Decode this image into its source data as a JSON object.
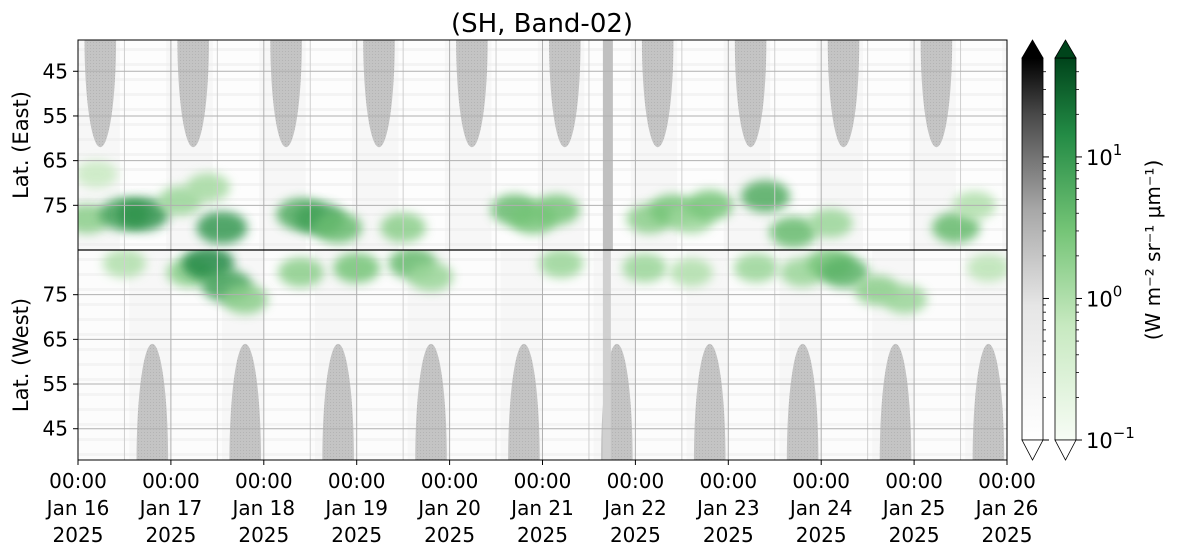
{
  "chart_data": {
    "type": "heatmap",
    "title": "(SH, Band-02)",
    "upper_ylabel": "Lat. (East)",
    "lower_ylabel": "Lat. (West)",
    "upper_yticks": [
      45,
      55,
      65,
      75
    ],
    "lower_yticks": [
      75,
      65,
      55,
      45
    ],
    "ylim": [
      38,
      85
    ],
    "x_ticks": [
      {
        "time": "00:00",
        "day": "Jan 16",
        "year": "2025"
      },
      {
        "time": "00:00",
        "day": "Jan 17",
        "year": "2025"
      },
      {
        "time": "00:00",
        "day": "Jan 18",
        "year": "2025"
      },
      {
        "time": "00:00",
        "day": "Jan 19",
        "year": "2025"
      },
      {
        "time": "00:00",
        "day": "Jan 20",
        "year": "2025"
      },
      {
        "time": "00:00",
        "day": "Jan 21",
        "year": "2025"
      },
      {
        "time": "00:00",
        "day": "Jan 22",
        "year": "2025"
      },
      {
        "time": "00:00",
        "day": "Jan 23",
        "year": "2025"
      },
      {
        "time": "00:00",
        "day": "Jan 24",
        "year": "2025"
      },
      {
        "time": "00:00",
        "day": "Jan 25",
        "year": "2025"
      },
      {
        "time": "00:00",
        "day": "Jan 26",
        "year": "2025"
      }
    ],
    "xlim": [
      "2025-01-16 00:00",
      "2025-01-26 00:00"
    ],
    "grid": true,
    "colorbar": {
      "label": "(W m⁻² sr⁻¹ μm⁻¹)",
      "scale": "log",
      "range": [
        0.1,
        50
      ],
      "tick_labels": [
        {
          "base": "10",
          "exp": "1",
          "value": 10
        },
        {
          "base": "10",
          "exp": "0",
          "value": 1
        },
        {
          "base": "10",
          "exp": "−1",
          "value": 0.1
        }
      ],
      "colormaps": [
        "Greys",
        "Greens"
      ],
      "extend": "both"
    },
    "night_lobes_upper": [
      {
        "center_day": 0.24,
        "bottom_lat": 62
      },
      {
        "center_day": 1.24,
        "bottom_lat": 62
      },
      {
        "center_day": 2.24,
        "bottom_lat": 62
      },
      {
        "center_day": 3.24,
        "bottom_lat": 62
      },
      {
        "center_day": 4.24,
        "bottom_lat": 62
      },
      {
        "center_day": 5.24,
        "bottom_lat": 62
      },
      {
        "center_day": 6.24,
        "bottom_lat": 62
      },
      {
        "center_day": 7.24,
        "bottom_lat": 62
      },
      {
        "center_day": 8.24,
        "bottom_lat": 62
      },
      {
        "center_day": 9.24,
        "bottom_lat": 62
      }
    ],
    "night_lobes_lower": [
      {
        "center_day": 0.8,
        "top_lat": 64
      },
      {
        "center_day": 1.8,
        "top_lat": 64
      },
      {
        "center_day": 2.8,
        "top_lat": 64
      },
      {
        "center_day": 3.8,
        "top_lat": 64
      },
      {
        "center_day": 4.8,
        "top_lat": 64
      },
      {
        "center_day": 5.8,
        "top_lat": 64
      },
      {
        "center_day": 6.8,
        "top_lat": 64
      },
      {
        "center_day": 7.8,
        "top_lat": 64
      },
      {
        "center_day": 8.8,
        "top_lat": 64
      },
      {
        "center_day": 9.8,
        "top_lat": 64
      }
    ],
    "aurora_upper": [
      {
        "day": 0.1,
        "lat": 78,
        "value": 2
      },
      {
        "day": 0.2,
        "lat": 68,
        "value": 0.6
      },
      {
        "day": 0.5,
        "lat": 77,
        "value": 8
      },
      {
        "day": 0.7,
        "lat": 77,
        "value": 12
      },
      {
        "day": 1.1,
        "lat": 74,
        "value": 1.5
      },
      {
        "day": 1.4,
        "lat": 71,
        "value": 1.2
      },
      {
        "day": 1.55,
        "lat": 80,
        "value": 10
      },
      {
        "day": 2.4,
        "lat": 77,
        "value": 6
      },
      {
        "day": 2.6,
        "lat": 78,
        "value": 8
      },
      {
        "day": 2.8,
        "lat": 80,
        "value": 4
      },
      {
        "day": 3.5,
        "lat": 80,
        "value": 2
      },
      {
        "day": 4.7,
        "lat": 76,
        "value": 4
      },
      {
        "day": 4.9,
        "lat": 78,
        "value": 3
      },
      {
        "day": 5.15,
        "lat": 76,
        "value": 3
      },
      {
        "day": 6.15,
        "lat": 78,
        "value": 2
      },
      {
        "day": 6.4,
        "lat": 76,
        "value": 3
      },
      {
        "day": 6.6,
        "lat": 78,
        "value": 1.5
      },
      {
        "day": 6.8,
        "lat": 75,
        "value": 3
      },
      {
        "day": 7.4,
        "lat": 73,
        "value": 6
      },
      {
        "day": 7.7,
        "lat": 81,
        "value": 4
      },
      {
        "day": 8.1,
        "lat": 79,
        "value": 1.5
      },
      {
        "day": 9.45,
        "lat": 80,
        "value": 4
      },
      {
        "day": 9.65,
        "lat": 75,
        "value": 1
      }
    ],
    "aurora_lower": [
      {
        "day": 0.5,
        "lat": 82,
        "value": 1
      },
      {
        "day": 1.2,
        "lat": 80,
        "value": 2
      },
      {
        "day": 1.4,
        "lat": 82,
        "value": 15
      },
      {
        "day": 1.6,
        "lat": 77,
        "value": 8
      },
      {
        "day": 1.8,
        "lat": 74,
        "value": 2
      },
      {
        "day": 2.4,
        "lat": 80,
        "value": 2
      },
      {
        "day": 3.0,
        "lat": 81,
        "value": 3
      },
      {
        "day": 3.6,
        "lat": 82,
        "value": 4
      },
      {
        "day": 3.8,
        "lat": 79,
        "value": 1.5
      },
      {
        "day": 5.2,
        "lat": 82,
        "value": 1.5
      },
      {
        "day": 6.1,
        "lat": 81,
        "value": 1.5
      },
      {
        "day": 6.6,
        "lat": 80,
        "value": 1
      },
      {
        "day": 7.3,
        "lat": 81,
        "value": 1.5
      },
      {
        "day": 7.8,
        "lat": 80,
        "value": 1.5
      },
      {
        "day": 8.1,
        "lat": 82,
        "value": 3
      },
      {
        "day": 8.25,
        "lat": 80,
        "value": 5
      },
      {
        "day": 8.6,
        "lat": 76,
        "value": 2
      },
      {
        "day": 8.9,
        "lat": 74,
        "value": 1.5
      },
      {
        "day": 9.8,
        "lat": 81,
        "value": 0.8
      }
    ],
    "data_gap_day": 5.65
  }
}
